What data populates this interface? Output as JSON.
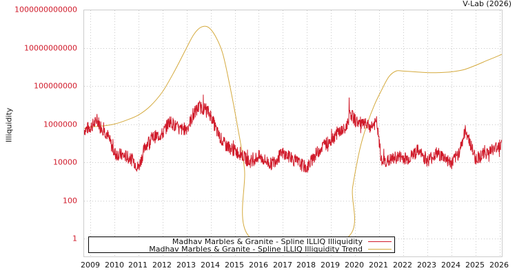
{
  "credit": "V-Lab (2026)",
  "chart_data": {
    "type": "line",
    "title": "",
    "xlabel": "",
    "ylabel": "Illiquidity",
    "yscale": "log",
    "ylim": [
      0.3,
      1000000000000
    ],
    "xlim": [
      2008.75,
      2026.1
    ],
    "grid": true,
    "legend_position": "bottom-left (inside plot)",
    "x_ticks": [
      "2009",
      "2010",
      "2011",
      "2012",
      "2013",
      "2014",
      "2015",
      "2016",
      "2017",
      "2018",
      "2019",
      "2020",
      "2021",
      "2022",
      "2023",
      "2024",
      "2025",
      "2026"
    ],
    "y_ticks": [
      "1000000000000",
      "10000000000",
      "100000000",
      "1000000",
      "10000",
      "100",
      "1"
    ],
    "series": [
      {
        "name": "Madhav Marbles & Granite - Spline ILLIQ Illiquidity",
        "color": "#d01a2a",
        "x": [
          2008.75,
          2009.0,
          2009.3,
          2009.5,
          2009.7,
          2010.0,
          2010.5,
          2010.8,
          2011.0,
          2011.3,
          2011.6,
          2012.0,
          2012.3,
          2012.7,
          2013.0,
          2013.3,
          2013.5,
          2013.8,
          2014.0,
          2014.3,
          2014.6,
          2015.0,
          2015.3,
          2015.6,
          2016.0,
          2016.5,
          2017.0,
          2017.5,
          2018.0,
          2018.3,
          2018.6,
          2019.0,
          2019.3,
          2019.6,
          2019.8,
          2020.0,
          2020.3,
          2020.6,
          2020.9,
          2021.1,
          2021.4,
          2021.8,
          2022.2,
          2022.6,
          2023.0,
          2023.4,
          2023.8,
          2024.0,
          2024.3,
          2024.6,
          2025.0,
          2025.4,
          2025.8,
          2026.1
        ],
        "values": [
          500000,
          700000,
          1500000,
          600000,
          300000,
          30000,
          20000,
          12000,
          5000,
          80000,
          200000,
          300000,
          1500000,
          500000,
          600000,
          3000000,
          8000000,
          6000000,
          3000000,
          300000,
          80000,
          40000,
          25000,
          10000,
          20000,
          8000,
          30000,
          12000,
          5000,
          20000,
          60000,
          150000,
          400000,
          500000,
          4000000,
          1500000,
          1000000,
          700000,
          1200000,
          10000,
          12000,
          20000,
          15000,
          40000,
          12000,
          30000,
          15000,
          8000,
          30000,
          500000,
          15000,
          30000,
          50000,
          100000
        ]
      },
      {
        "name": "Madhav Marbles & Granite - Spline ILLIQ Illiquidity Trend",
        "color": "#d4a93c",
        "x": [
          2008.75,
          2009.0,
          2009.5,
          2010.0,
          2010.5,
          2011.0,
          2011.5,
          2012.0,
          2012.5,
          2013.0,
          2013.3,
          2013.6,
          2013.9,
          2014.2,
          2014.5,
          2014.8,
          2015.1,
          2015.4,
          2015.7,
          2019.6,
          2019.9,
          2020.2,
          2020.5,
          2020.8,
          2021.1,
          2021.4,
          2021.7,
          2022.0,
          2022.5,
          2023.0,
          2023.5,
          2024.0,
          2024.5,
          2025.0,
          2025.5,
          2026.1
        ],
        "values": [
          600000,
          700000,
          800000,
          1000000,
          1600000,
          3000000,
          9000000,
          50000000,
          600000000,
          10000000000,
          50000000000,
          120000000000,
          120000000000,
          40000000000,
          5000000000,
          100000000,
          1000000,
          5000,
          1,
          1,
          500,
          50000,
          1000000,
          10000000,
          60000000,
          300000000,
          600000000,
          600000000,
          550000000,
          500000000,
          500000000,
          550000000,
          700000000,
          1200000000,
          2200000000,
          4500000000
        ]
      }
    ]
  }
}
